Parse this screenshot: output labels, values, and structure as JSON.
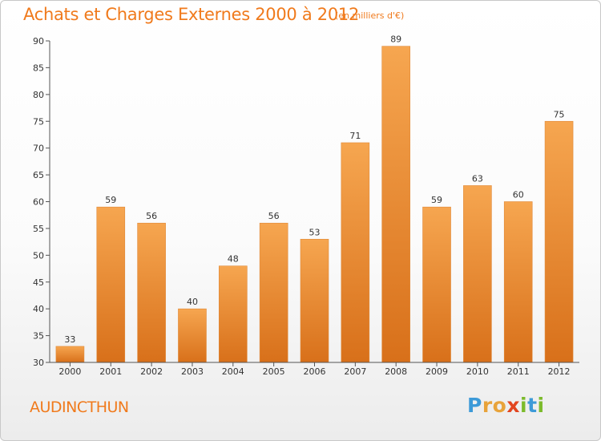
{
  "header": {
    "title": "Achats et Charges Externes 2000 à 2012",
    "subtitle": "(en milliers d'€)"
  },
  "footer": {
    "commune": "AUDINCTHUN",
    "logo_letters": [
      "P",
      "r",
      "o",
      "x",
      "i",
      "t",
      "i"
    ],
    "logo_colors": [
      "#3d9ad8",
      "#e8a33a",
      "#e8a33a",
      "#e2451f",
      "#7cbb2c",
      "#3d9ad8",
      "#7cbb2c"
    ]
  },
  "colors": {
    "bar_top": "#f6a650",
    "bar_bottom": "#d8701a",
    "title": "#f07a1c",
    "axis": "#555555",
    "grid": "#dedede"
  },
  "chart_data": {
    "type": "bar",
    "title": "Achats et Charges Externes 2000 à 2012",
    "subtitle": "(en milliers d'€)",
    "xlabel": "",
    "ylabel": "",
    "categories": [
      "2000",
      "2001",
      "2002",
      "2003",
      "2004",
      "2005",
      "2006",
      "2007",
      "2008",
      "2009",
      "2010",
      "2011",
      "2012"
    ],
    "values": [
      33,
      59,
      56,
      40,
      48,
      56,
      53,
      71,
      89,
      59,
      63,
      60,
      75
    ],
    "ylim": [
      30,
      90
    ],
    "yticks": [
      30,
      35,
      40,
      45,
      50,
      55,
      60,
      65,
      70,
      75,
      80,
      85,
      90
    ],
    "grid": false
  }
}
